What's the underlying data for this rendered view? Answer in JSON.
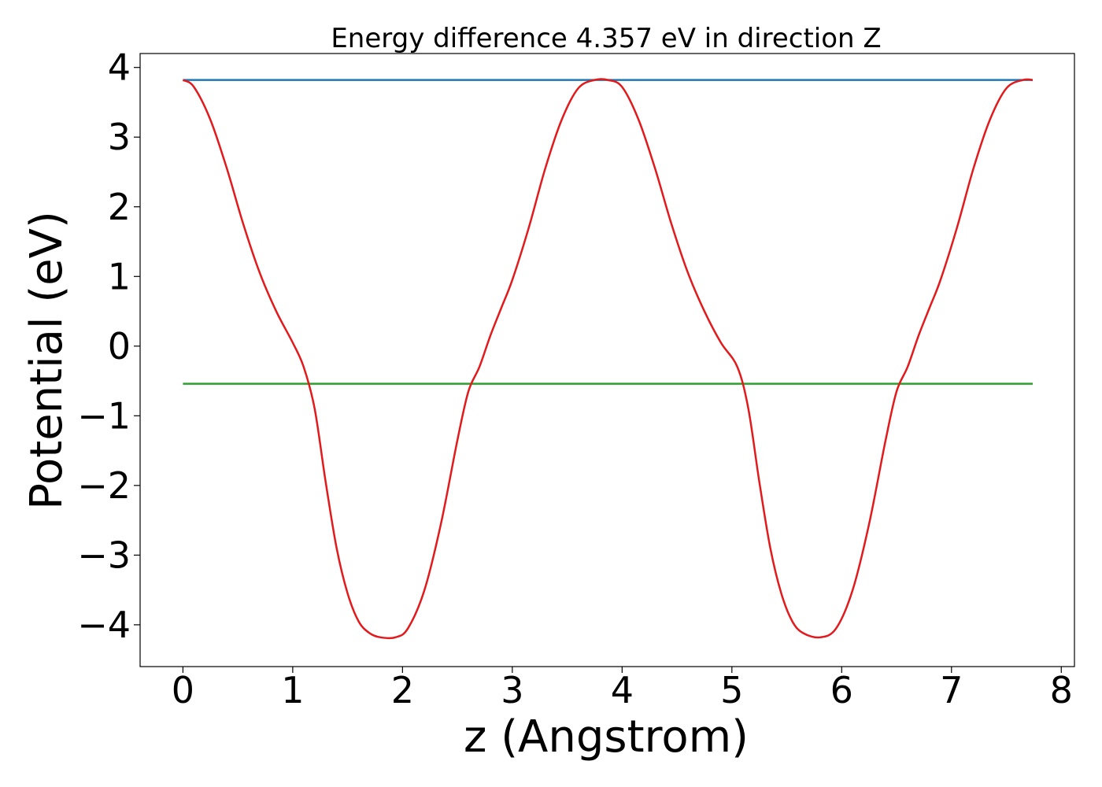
{
  "chart_data": {
    "type": "line",
    "title": "Energy difference 4.357 eV in direction Z",
    "xlabel": "z (Angstrom)",
    "ylabel": "Potential (eV)",
    "xlim": [
      -0.39,
      8.12
    ],
    "ylim": [
      -4.6,
      4.2
    ],
    "xticks": [
      0,
      1,
      2,
      3,
      4,
      5,
      6,
      7,
      8
    ],
    "xtick_labels": [
      "0",
      "1",
      "2",
      "3",
      "4",
      "5",
      "6",
      "7",
      "8"
    ],
    "yticks": [
      4,
      3,
      2,
      1,
      0,
      -1,
      -2,
      -3,
      -4
    ],
    "ytick_labels": [
      "4",
      "3",
      "2",
      "1",
      "0",
      "−1",
      "−2",
      "−3",
      "−4"
    ],
    "grid": false,
    "series": [
      {
        "color": "#1f77b4",
        "style": "constant",
        "x": [
          0.0,
          7.74
        ],
        "y": [
          3.82,
          3.82
        ]
      },
      {
        "color": "#2ca02c",
        "style": "constant",
        "x": [
          0.0,
          7.74
        ],
        "y": [
          -0.54,
          -0.54
        ]
      },
      {
        "color": "#e31a1c",
        "style": "curve",
        "x": [
          0.0,
          0.1,
          0.25,
          0.4,
          0.55,
          0.7,
          0.85,
          1.0,
          1.1,
          1.2,
          1.3,
          1.4,
          1.5,
          1.6,
          1.7,
          1.8,
          1.935,
          2.05,
          2.2,
          2.35,
          2.5,
          2.6,
          2.7,
          2.8,
          2.9,
          3.0,
          3.15,
          3.3,
          3.45,
          3.6,
          3.75,
          3.87,
          4.0,
          4.15,
          4.3,
          4.45,
          4.6,
          4.75,
          4.9,
          5.05,
          5.15,
          5.25,
          5.35,
          5.45,
          5.55,
          5.65,
          5.805,
          5.95,
          6.1,
          6.25,
          6.4,
          6.5,
          6.6,
          6.7,
          6.8,
          6.9,
          7.05,
          7.2,
          7.35,
          7.5,
          7.65,
          7.74
        ],
        "y": [
          3.82,
          3.72,
          3.25,
          2.55,
          1.75,
          1.05,
          0.5,
          0.05,
          -0.3,
          -0.9,
          -1.95,
          -2.9,
          -3.55,
          -3.95,
          -4.12,
          -4.18,
          -4.18,
          -4.05,
          -3.5,
          -2.55,
          -1.35,
          -0.65,
          -0.3,
          0.15,
          0.55,
          0.95,
          1.7,
          2.55,
          3.25,
          3.7,
          3.82,
          3.82,
          3.72,
          3.25,
          2.55,
          1.75,
          1.05,
          0.5,
          0.05,
          -0.3,
          -0.9,
          -1.95,
          -2.9,
          -3.55,
          -3.95,
          -4.12,
          -4.18,
          -4.05,
          -3.5,
          -2.55,
          -1.35,
          -0.65,
          -0.3,
          0.15,
          0.55,
          0.95,
          1.7,
          2.55,
          3.25,
          3.7,
          3.82,
          3.82
        ]
      }
    ]
  }
}
